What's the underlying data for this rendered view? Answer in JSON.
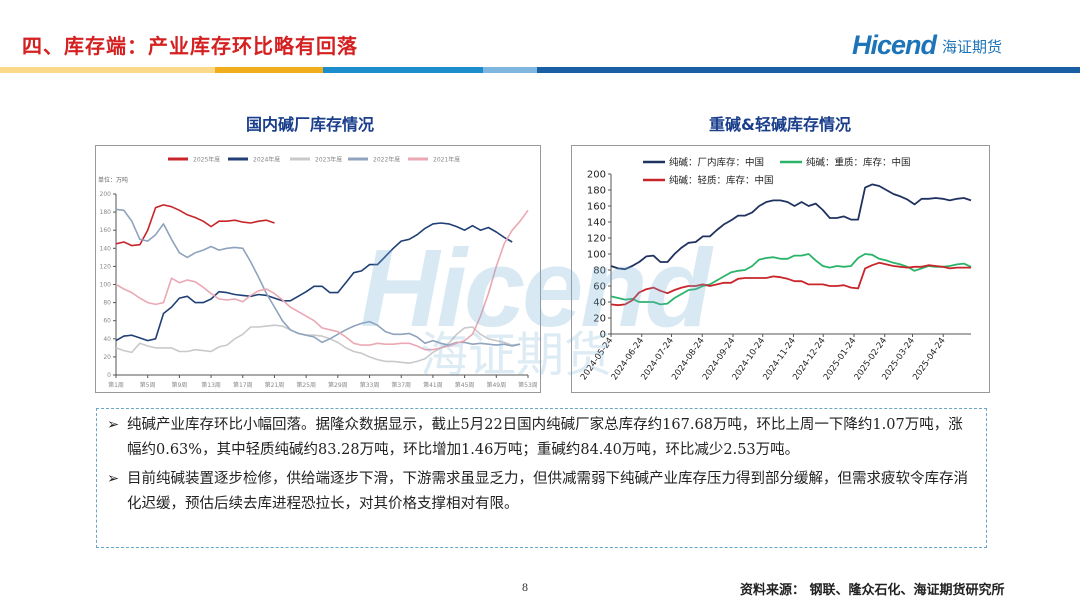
{
  "header": {
    "title": "四、库存端：产业库存环比略有回落",
    "logo_en": "Hicend",
    "logo_cn": "海证期货",
    "bar_colors": [
      "#fbd88a",
      "#f0ae1c",
      "#1b8ccc",
      "#7fb6e0",
      "#1a5fa4"
    ]
  },
  "watermark": {
    "en": "Hicend",
    "cn": "海证期货"
  },
  "chart_data": [
    {
      "type": "line",
      "title": "国内碱厂库存情况",
      "unit_label": "单位：万吨",
      "ylim": [
        0,
        200
      ],
      "yticks": [
        0,
        20,
        40,
        60,
        80,
        100,
        120,
        140,
        160,
        180,
        200
      ],
      "xlim": [
        1,
        53
      ],
      "xtick_labels": [
        "第1周",
        "第5周",
        "第9周",
        "第13周",
        "第17周",
        "第21周",
        "第25周",
        "第29周",
        "第33周",
        "第37周",
        "第41周",
        "第45周",
        "第49周",
        "第53周"
      ],
      "xtick_weeks": [
        1,
        5,
        9,
        13,
        17,
        21,
        25,
        29,
        33,
        37,
        41,
        45,
        49,
        53
      ],
      "legend": "top",
      "grid": false,
      "series": [
        {
          "name": "2025年度",
          "color": "#c8252b",
          "values": [
            145,
            147,
            143,
            144,
            160,
            185,
            188,
            186,
            182,
            177,
            174,
            170,
            164,
            170,
            170,
            171,
            169,
            168,
            170,
            171,
            168
          ]
        },
        {
          "name": "2024年度",
          "color": "#1f3f75",
          "values": [
            38,
            43,
            44,
            41,
            38,
            40,
            68,
            75,
            85,
            87,
            80,
            80,
            84,
            92,
            91,
            89,
            88,
            87,
            89,
            88,
            85,
            82,
            82,
            87,
            92,
            98,
            98,
            91,
            91,
            102,
            113,
            115,
            122,
            122,
            131,
            140,
            148,
            150,
            155,
            162,
            167,
            168,
            167,
            164,
            160,
            165,
            160,
            163,
            158,
            152,
            147
          ]
        },
        {
          "name": "2023年度",
          "color": "#c9c9cc",
          "values": [
            30,
            27,
            25,
            35,
            32,
            30,
            30,
            30,
            26,
            26,
            28,
            27,
            26,
            31,
            33,
            40,
            45,
            53,
            53,
            54,
            55,
            54,
            50,
            46,
            44,
            44,
            43,
            40,
            36,
            30,
            26,
            24,
            20,
            17,
            15,
            15,
            14,
            13,
            15,
            18,
            25,
            30,
            35,
            45,
            52,
            53,
            45,
            40,
            38,
            36,
            33,
            34
          ]
        },
        {
          "name": "2022年度",
          "color": "#8fa3bd",
          "values": [
            183,
            182,
            170,
            150,
            148,
            155,
            167,
            150,
            135,
            130,
            135,
            138,
            142,
            138,
            140,
            141,
            140,
            125,
            108,
            90,
            75,
            60,
            50,
            46,
            44,
            42,
            36,
            40,
            45,
            50,
            54,
            57,
            59,
            55,
            48,
            45,
            45,
            46,
            42,
            35,
            38,
            35,
            33,
            36,
            36,
            34,
            35,
            34,
            33,
            34,
            32,
            34
          ]
        },
        {
          "name": "2021年度",
          "color": "#eaa8b4",
          "values": [
            100,
            95,
            91,
            85,
            80,
            78,
            80,
            107,
            102,
            105,
            103,
            97,
            90,
            84,
            83,
            84,
            81,
            88,
            93,
            95,
            90,
            83,
            75,
            70,
            65,
            60,
            52,
            50,
            48,
            42,
            35,
            33,
            33,
            35,
            34,
            34,
            35,
            35,
            32,
            28,
            28,
            30,
            32,
            35,
            38,
            45,
            65,
            90,
            120,
            145,
            160,
            170,
            182
          ]
        }
      ]
    },
    {
      "type": "line",
      "title": "重碱&轻碱库存情况",
      "ylim": [
        0,
        200
      ],
      "yticks": [
        0,
        20,
        40,
        60,
        80,
        100,
        120,
        140,
        160,
        180,
        200
      ],
      "xtick_labels": [
        "2024-05-24",
        "2024-06-24",
        "2024-07-24",
        "2024-08-24",
        "2024-09-24",
        "2024-10-24",
        "2024-11-24",
        "2024-12-24",
        "2025-01-24",
        "2025-02-24",
        "2025-03-24",
        "2025-04-24"
      ],
      "x_start": "2024-05-24",
      "x_end": "2025-05-22",
      "frequency": "weekly",
      "legend": "top",
      "grid": false,
      "series": [
        {
          "name": "纯碱：厂内库存：中国",
          "color": "#1f3260",
          "values": [
            85,
            82,
            81,
            85,
            90,
            97,
            98,
            90,
            90,
            100,
            108,
            114,
            115,
            122,
            122,
            130,
            137,
            142,
            148,
            148,
            152,
            160,
            165,
            167,
            167,
            165,
            160,
            165,
            160,
            163,
            155,
            145,
            145,
            147,
            143,
            143,
            183,
            187,
            185,
            180,
            175,
            172,
            168,
            162,
            169,
            169,
            170,
            169,
            167,
            169,
            170,
            167
          ]
        },
        {
          "name": "纯碱：重质：库存：中国",
          "color": "#2bb36a",
          "values": [
            47,
            45,
            43,
            44,
            40,
            40,
            40,
            37,
            38,
            45,
            50,
            55,
            56,
            60,
            62,
            67,
            72,
            77,
            79,
            80,
            85,
            93,
            95,
            96,
            94,
            94,
            98,
            98,
            100,
            92,
            85,
            83,
            85,
            84,
            85,
            95,
            100,
            99,
            94,
            92,
            89,
            87,
            84,
            79,
            82,
            85,
            84,
            84,
            85,
            87,
            88,
            84
          ]
        },
        {
          "name": "纯碱：轻质：库存：中国",
          "color": "#c8252b",
          "values": [
            37,
            36,
            37,
            42,
            52,
            56,
            58,
            54,
            51,
            55,
            58,
            60,
            60,
            62,
            60,
            62,
            64,
            64,
            69,
            70,
            70,
            70,
            70,
            72,
            71,
            69,
            66,
            66,
            62,
            62,
            62,
            60,
            60,
            61,
            58,
            57,
            82,
            86,
            89,
            87,
            85,
            84,
            83,
            84,
            84,
            86,
            85,
            84,
            82,
            83,
            83,
            83
          ]
        }
      ]
    }
  ],
  "text": {
    "bullet": "➢",
    "paragraphs": [
      "纯碱产业库存环比小幅回落。据隆众数据显示，截止5月22日国内纯碱厂家总库存约167.68万吨，环比上周一下降约1.07万吨，涨幅约0.63%，其中轻质纯碱约83.28万吨，环比增加1.46万吨；重碱约84.40万吨，环比减少2.53万吨。",
      "目前纯碱装置逐步检修，供给端逐步下滑，下游需求虽显乏力，但供减需弱下纯碱产业库存压力得到部分缓解，但需求疲软令库存消化迟缓，预估后续去库进程恐拉长，对其价格支撑相对有限。"
    ]
  },
  "footer": {
    "page": "8",
    "source": "资料来源： 钢联、隆众石化、海证期货研究所"
  }
}
